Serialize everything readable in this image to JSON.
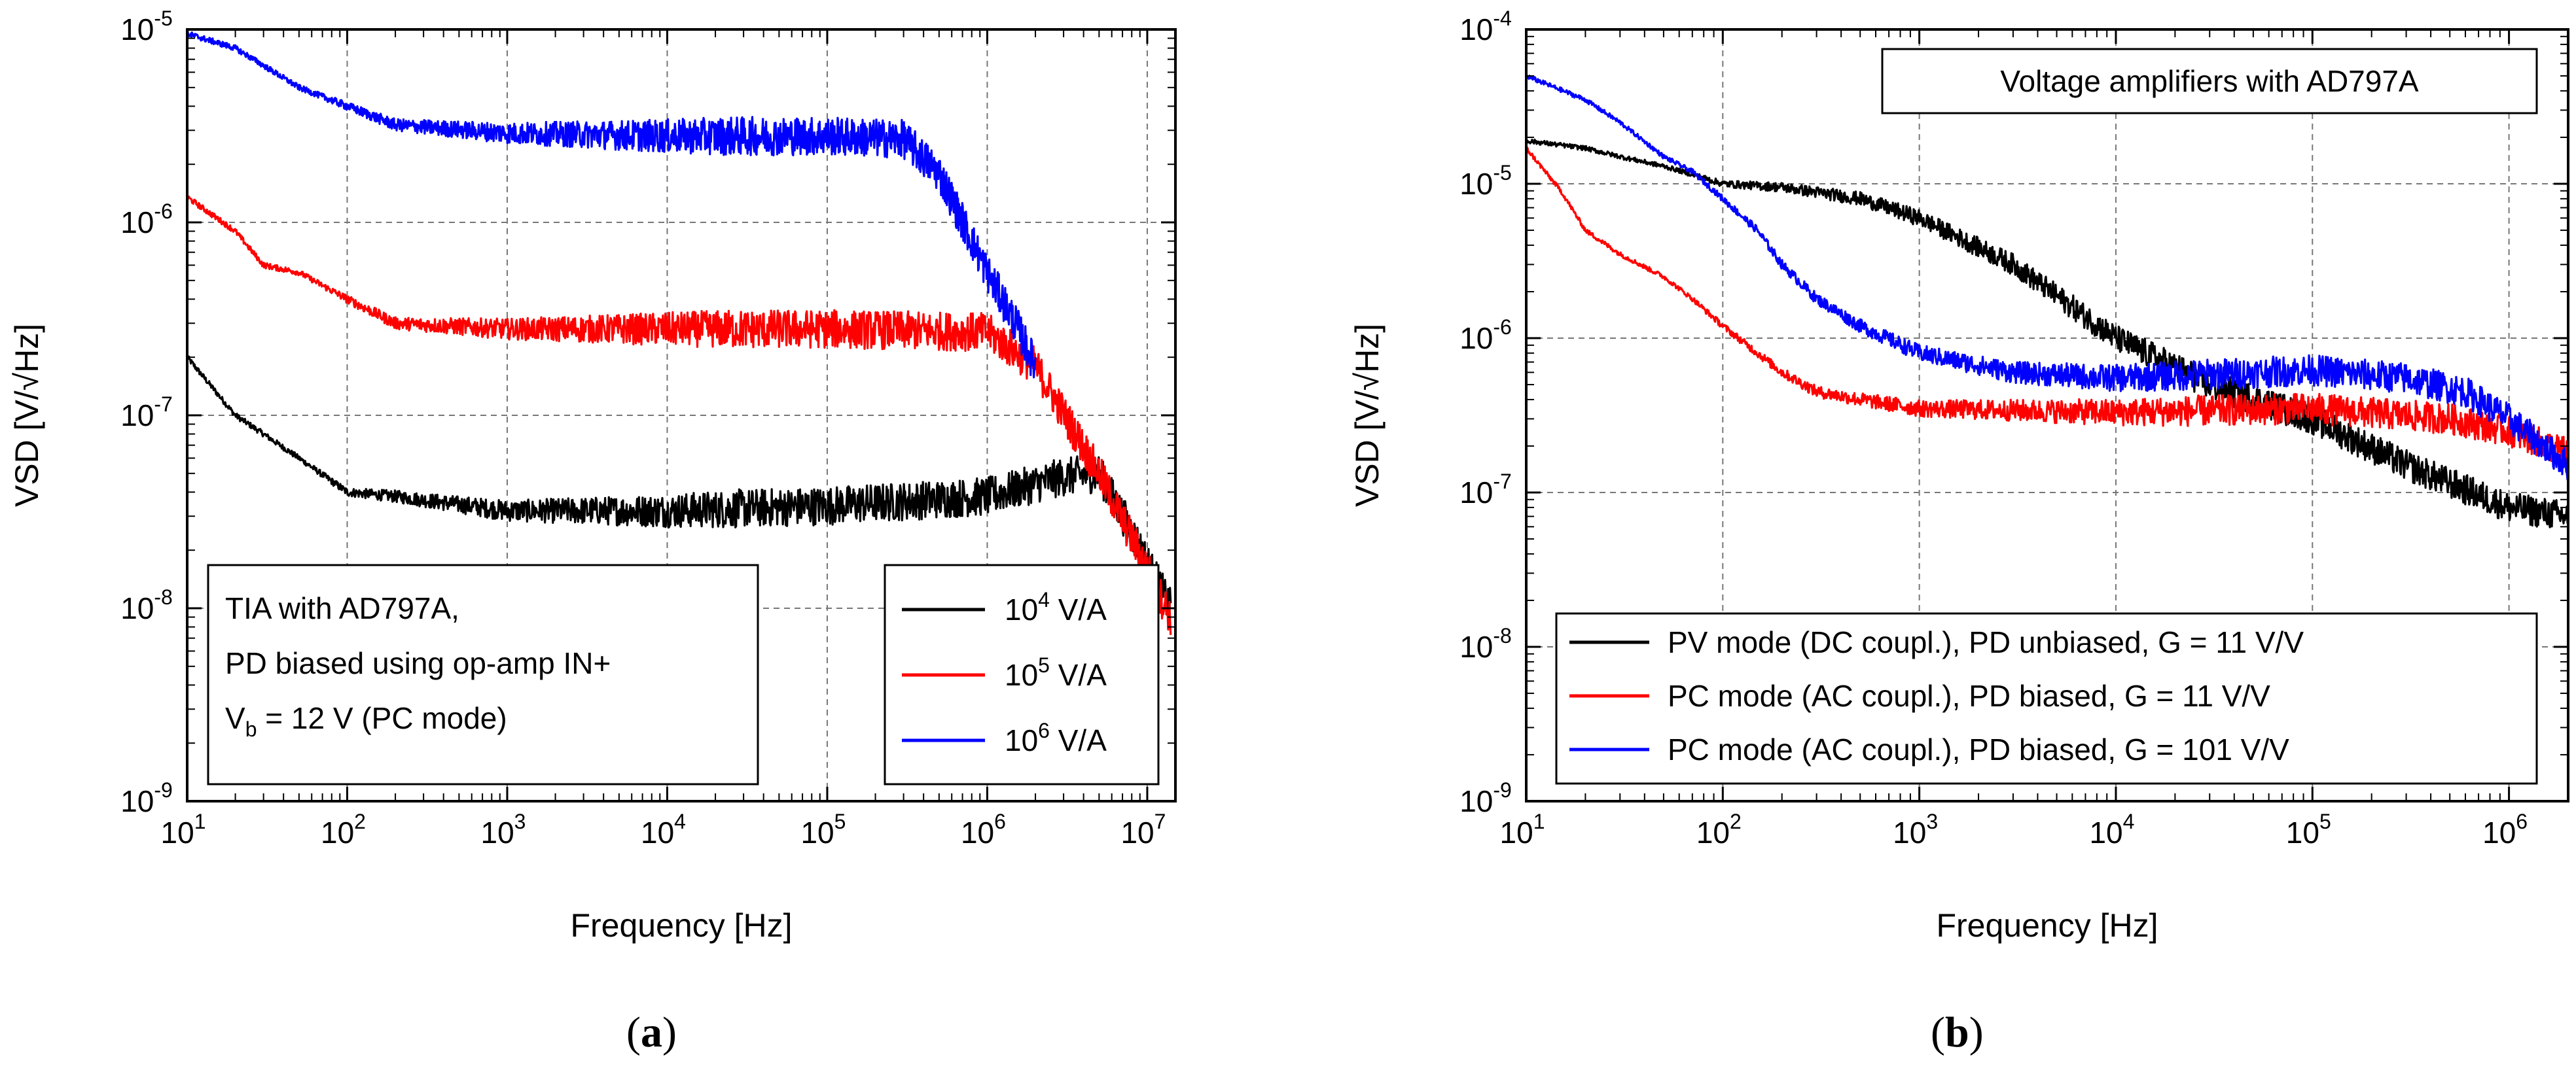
{
  "chart_data": [
    {
      "type": "line",
      "panel_label": "a",
      "xlabel": "Frequency [Hz]",
      "ylabel": "VSD [V/√Hz]",
      "xscale": "log",
      "yscale": "log",
      "xlim": [
        10,
        15000000
      ],
      "ylim": [
        1e-09,
        1e-05
      ],
      "x_ticks": [
        {
          "base": "10",
          "exp": "1"
        },
        {
          "base": "10",
          "exp": "2"
        },
        {
          "base": "10",
          "exp": "3"
        },
        {
          "base": "10",
          "exp": "4"
        },
        {
          "base": "10",
          "exp": "5"
        },
        {
          "base": "10",
          "exp": "6"
        },
        {
          "base": "10",
          "exp": "7"
        }
      ],
      "y_ticks": [
        {
          "base": "10",
          "exp": "-9"
        },
        {
          "base": "10",
          "exp": "-8"
        },
        {
          "base": "10",
          "exp": "-7"
        },
        {
          "base": "10",
          "exp": "-6"
        },
        {
          "base": "10",
          "exp": "-5"
        }
      ],
      "grid": true,
      "annotation": {
        "line1": "TIA with AD797A,",
        "line2": "PD biased using op-amp IN+",
        "line3_pre": "V",
        "line3_sub": "b",
        "line3_post": " = 12 V (PC mode)"
      },
      "legend_position": "bottom-right",
      "series": [
        {
          "name": "10^4 V/A",
          "legend_base": "10",
          "legend_exp": "4",
          "legend_unit": " V/A",
          "color": "#000000",
          "x": [
            10,
            20,
            30,
            50,
            100,
            200,
            1000,
            10000,
            100000,
            1000000,
            3000000,
            5000000,
            8000000,
            14000000
          ],
          "y": [
            2e-07,
            1e-07,
            8e-08,
            6e-08,
            4e-08,
            3.8e-08,
            3.2e-08,
            3.2e-08,
            3.4e-08,
            3.8e-08,
            4.8e-08,
            5e-08,
            2.5e-08,
            1e-08
          ]
        },
        {
          "name": "10^5 V/A",
          "legend_base": "10",
          "legend_exp": "5",
          "legend_unit": " V/A",
          "color": "#ff0000",
          "x": [
            10,
            20,
            30,
            50,
            100,
            200,
            1000,
            10000,
            100000,
            1000000,
            2000000,
            5000000,
            10000000,
            14000000
          ],
          "y": [
            1.35e-06,
            9e-07,
            6e-07,
            5.5e-07,
            4e-07,
            3e-07,
            2.8e-07,
            2.8e-07,
            2.8e-07,
            2.7e-07,
            1.8e-07,
            5e-08,
            1.6e-08,
            9e-09
          ]
        },
        {
          "name": "10^6 V/A",
          "legend_base": "10",
          "legend_exp": "6",
          "legend_unit": " V/A",
          "color": "#0000ff",
          "x": [
            10,
            20,
            30,
            50,
            100,
            200,
            1000,
            10000,
            100000,
            300000,
            500000,
            1000000,
            1500000,
            2000000
          ],
          "y": [
            9.5e-06,
            8e-06,
            6.5e-06,
            5e-06,
            4e-06,
            3.2e-06,
            2.9e-06,
            2.8e-06,
            2.8e-06,
            2.7e-06,
            1.8e-06,
            5.5e-07,
            3e-07,
            1.8e-07
          ]
        }
      ]
    },
    {
      "type": "line",
      "panel_label": "b",
      "xlabel": "Frequency [Hz]",
      "ylabel": "VSD [V/√Hz]",
      "xscale": "log",
      "yscale": "log",
      "xlim": [
        10,
        2000000
      ],
      "ylim": [
        1e-09,
        0.0001
      ],
      "x_ticks": [
        {
          "base": "10",
          "exp": "1"
        },
        {
          "base": "10",
          "exp": "2"
        },
        {
          "base": "10",
          "exp": "3"
        },
        {
          "base": "10",
          "exp": "4"
        },
        {
          "base": "10",
          "exp": "5"
        },
        {
          "base": "10",
          "exp": "6"
        }
      ],
      "y_ticks": [
        {
          "base": "10",
          "exp": "-9"
        },
        {
          "base": "10",
          "exp": "-8"
        },
        {
          "base": "10",
          "exp": "-7"
        },
        {
          "base": "10",
          "exp": "-6"
        },
        {
          "base": "10",
          "exp": "-5"
        },
        {
          "base": "10",
          "exp": "-4"
        }
      ],
      "grid": true,
      "title_box": "Voltage amplifiers with AD797A",
      "legend_position": "bottom",
      "series": [
        {
          "name": "PV mode (DC coupl.), PD unbiased, G = 11 V/V",
          "color": "#000000",
          "x": [
            10,
            20,
            30,
            50,
            70,
            100,
            200,
            500,
            1000,
            3000,
            10000,
            30000,
            100000,
            300000,
            1000000,
            2000000
          ],
          "y": [
            1.9e-05,
            1.7e-05,
            1.5e-05,
            1.3e-05,
            1.15e-05,
            1e-05,
            9.5e-06,
            8e-06,
            6e-06,
            3e-06,
            1e-06,
            5e-07,
            3e-07,
            1.5e-07,
            8e-08,
            7e-08
          ]
        },
        {
          "name": "PC mode (AC coupl.), PD biased, G = 11 V/V",
          "color": "#ff0000",
          "x": [
            10,
            15,
            20,
            30,
            50,
            70,
            100,
            150,
            200,
            300,
            500,
            1000,
            10000,
            100000,
            500000,
            1000000,
            2000000
          ],
          "y": [
            1.7e-05,
            9e-06,
            5e-06,
            3.5e-06,
            2.5e-06,
            1.8e-06,
            1.2e-06,
            8e-07,
            6e-07,
            4.5e-07,
            4e-07,
            3.5e-07,
            3.3e-07,
            3.5e-07,
            3e-07,
            2.5e-07,
            1.8e-07
          ]
        },
        {
          "name": "PC mode (AC coupl.), PD biased, G = 101 V/V",
          "color": "#0000ff",
          "x": [
            10,
            20,
            30,
            50,
            70,
            100,
            150,
            200,
            300,
            500,
            1000,
            3000,
            10000,
            100000,
            300000,
            600000,
            1000000,
            2000000
          ],
          "y": [
            5e-05,
            3.5e-05,
            2.5e-05,
            1.5e-05,
            1.2e-05,
            8e-06,
            5e-06,
            3e-06,
            1.8e-06,
            1.2e-06,
            8e-07,
            6e-07,
            5.5e-07,
            6.2e-07,
            5.5e-07,
            4.5e-07,
            3e-07,
            1.5e-07
          ]
        }
      ]
    }
  ]
}
